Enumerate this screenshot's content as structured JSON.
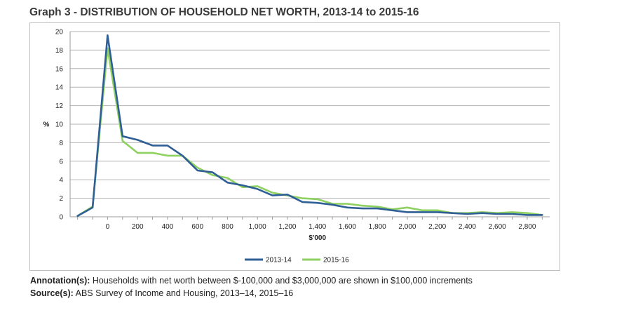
{
  "title": "Graph 3 - DISTRIBUTION OF HOUSEHOLD NET WORTH, 2013-14 to 2015-16",
  "notes": {
    "annotation_label": "Annotation(s):",
    "annotation_text": " Households with net worth between $-100,000 and $3,000,000 are shown in $100,000 increments",
    "source_label": "Source(s):",
    "source_text": " ABS Survey of Income and Housing, 2013–14, 2015–16"
  },
  "chart_data": {
    "type": "line",
    "title": "Graph 3 - DISTRIBUTION OF HOUSEHOLD NET WORTH, 2013-14 to 2015-16",
    "xlabel": "$'000",
    "ylabel": "%",
    "x": [
      -200,
      -100,
      0,
      100,
      200,
      300,
      400,
      500,
      600,
      700,
      800,
      900,
      1000,
      1100,
      1200,
      1300,
      1400,
      1500,
      1600,
      1700,
      1800,
      1900,
      2000,
      2100,
      2200,
      2300,
      2400,
      2500,
      2600,
      2700,
      2800,
      2900
    ],
    "xticks": [
      0,
      200,
      400,
      600,
      800,
      1000,
      1200,
      1400,
      1600,
      1800,
      2000,
      2200,
      2400,
      2600,
      2800
    ],
    "xtick_labels": [
      "0",
      "200",
      "400",
      "600",
      "800",
      "1,000",
      "1,200",
      "1,400",
      "1,600",
      "1,800",
      "2,000",
      "2,200",
      "2,400",
      "2,600",
      "2,800"
    ],
    "xlim": [
      -250,
      2950
    ],
    "ylim": [
      0,
      20
    ],
    "yticks": [
      0,
      2,
      4,
      6,
      8,
      10,
      12,
      14,
      16,
      18,
      20
    ],
    "grid": true,
    "legend_position": "bottom",
    "series": [
      {
        "name": "2013-14",
        "color": "#2f5f95",
        "values": [
          0.1,
          1.0,
          19.6,
          8.7,
          8.3,
          7.7,
          7.7,
          6.6,
          5.0,
          4.8,
          3.7,
          3.4,
          3.0,
          2.3,
          2.4,
          1.6,
          1.5,
          1.3,
          1.0,
          0.9,
          0.9,
          0.7,
          0.5,
          0.5,
          0.5,
          0.4,
          0.3,
          0.4,
          0.3,
          0.3,
          0.2,
          0.2
        ]
      },
      {
        "name": "2015-16",
        "color": "#8fd160",
        "values": [
          0.1,
          1.1,
          18.2,
          8.2,
          6.9,
          6.9,
          6.6,
          6.6,
          5.3,
          4.5,
          4.2,
          3.2,
          3.3,
          2.6,
          2.3,
          2.0,
          1.9,
          1.4,
          1.4,
          1.2,
          1.1,
          0.8,
          1.0,
          0.7,
          0.7,
          0.4,
          0.4,
          0.5,
          0.4,
          0.5,
          0.4,
          0.2
        ]
      }
    ]
  }
}
